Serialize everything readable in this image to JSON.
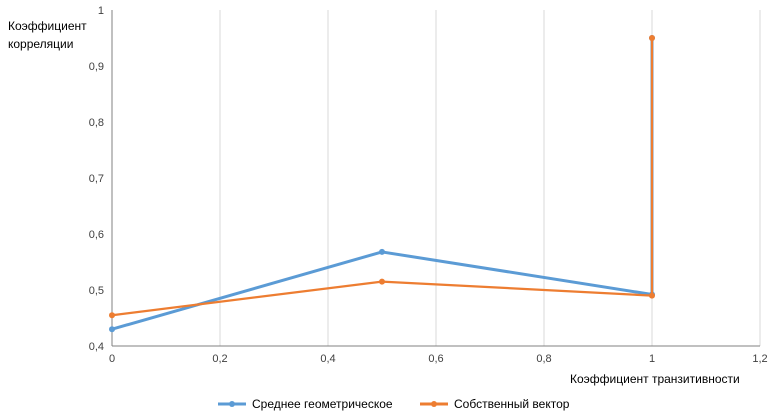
{
  "chart_data": {
    "type": "scatter",
    "ylabel_lines": [
      "Коэффициент",
      "корреляции"
    ],
    "xlabel": "Коэффициент транзитивности",
    "xlim": [
      0,
      1.2
    ],
    "ylim": [
      0.4,
      1
    ],
    "x_ticks": [
      "0",
      "0,2",
      "0,4",
      "0,6",
      "0,8",
      "1",
      "1,2"
    ],
    "y_ticks": [
      "0,4",
      "0,5",
      "0,6",
      "0,7",
      "0,8",
      "0,9",
      "1"
    ],
    "grid": "vertical",
    "legend_position": "bottom",
    "series": [
      {
        "name": "Среднее геометрическое",
        "color": "#5B9BD5",
        "points": [
          [
            0,
            0.43
          ],
          [
            0.5,
            0.568
          ],
          [
            1,
            0.492
          ],
          [
            1,
            0.95
          ]
        ]
      },
      {
        "name": "Собственный вектор",
        "color": "#ED7D31",
        "points": [
          [
            0,
            0.455
          ],
          [
            0.5,
            0.515
          ],
          [
            1,
            0.49
          ],
          [
            1,
            0.95
          ]
        ]
      }
    ]
  }
}
